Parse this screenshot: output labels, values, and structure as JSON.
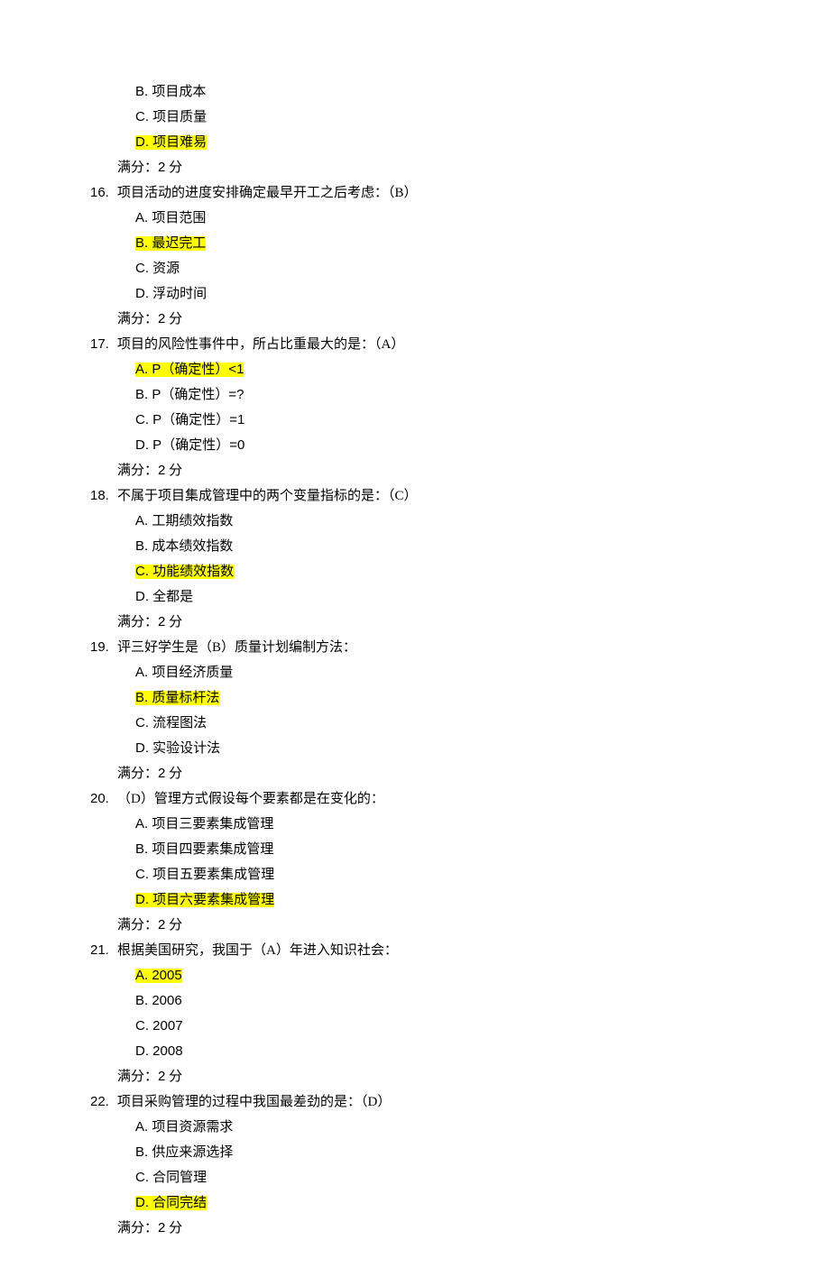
{
  "style": {
    "highlight_color": "#ffff00",
    "font_size_pt": 15,
    "line_height": 1.8,
    "background": "#ffffff",
    "text_color": "#000000"
  },
  "score_label_prefix": "满分：",
  "score_value": "2",
  "score_unit": " 分",
  "prelude": {
    "options": [
      {
        "label": "B. ",
        "text": "项目成本",
        "highlighted": false
      },
      {
        "label": "C. ",
        "text": "项目质量",
        "highlighted": false
      },
      {
        "label": "D. ",
        "text": "项目难易",
        "highlighted": true
      }
    ]
  },
  "questions": [
    {
      "num": "16. ",
      "stem": "项目活动的进度安排确定最早开工之后考虑：（B）",
      "options": [
        {
          "label": "A. ",
          "text": "项目范围",
          "highlighted": false
        },
        {
          "label": "B. ",
          "text": "最迟完工",
          "highlighted": true
        },
        {
          "label": "C. ",
          "text": "资源",
          "highlighted": false
        },
        {
          "label": "D. ",
          "text": "浮动时间",
          "highlighted": false
        }
      ]
    },
    {
      "num": "17. ",
      "stem": "项目的风险性事件中，所占比重最大的是：（A）",
      "options": [
        {
          "label": "A. ",
          "text": "P（确定性）<1",
          "highlighted": true,
          "mono": true
        },
        {
          "label": "B. ",
          "text": "P（确定性）=?",
          "highlighted": false,
          "mono": true
        },
        {
          "label": "C. ",
          "text": "P（确定性）=1",
          "highlighted": false,
          "mono": true
        },
        {
          "label": "D. ",
          "text": "P（确定性）=0",
          "highlighted": false,
          "mono": true
        }
      ]
    },
    {
      "num": "18. ",
      "stem": "不属于项目集成管理中的两个变量指标的是：（C）",
      "options": [
        {
          "label": "A. ",
          "text": "工期绩效指数",
          "highlighted": false
        },
        {
          "label": "B. ",
          "text": "成本绩效指数",
          "highlighted": false
        },
        {
          "label": "C. ",
          "text": "功能绩效指数",
          "highlighted": true
        },
        {
          "label": "D. ",
          "text": "全都是",
          "highlighted": false
        }
      ]
    },
    {
      "num": "19. ",
      "stem": "评三好学生是（B）质量计划编制方法：",
      "options": [
        {
          "label": "A. ",
          "text": "项目经济质量",
          "highlighted": false
        },
        {
          "label": "B. ",
          "text": "质量标杆法",
          "highlighted": true
        },
        {
          "label": "C. ",
          "text": "流程图法",
          "highlighted": false
        },
        {
          "label": "D. ",
          "text": "实验设计法",
          "highlighted": false
        }
      ]
    },
    {
      "num": "20. ",
      "stem": "（D）管理方式假设每个要素都是在变化的：",
      "options": [
        {
          "label": "A. ",
          "text": "项目三要素集成管理",
          "highlighted": false
        },
        {
          "label": "B. ",
          "text": "项目四要素集成管理",
          "highlighted": false
        },
        {
          "label": "C. ",
          "text": "项目五要素集成管理",
          "highlighted": false
        },
        {
          "label": "D. ",
          "text": "项目六要素集成管理",
          "highlighted": true
        }
      ]
    },
    {
      "num": "21. ",
      "stem": "根据美国研究，我国于（A）年进入知识社会：",
      "options": [
        {
          "label": "A. ",
          "text": "2005",
          "highlighted": true,
          "mono": true
        },
        {
          "label": "B. ",
          "text": "2006",
          "highlighted": false,
          "mono": true
        },
        {
          "label": "C. ",
          "text": "2007",
          "highlighted": false,
          "mono": true
        },
        {
          "label": "D. ",
          "text": "2008",
          "highlighted": false,
          "mono": true
        }
      ]
    },
    {
      "num": "22. ",
      "stem": "项目采购管理的过程中我国最差劲的是：（D）",
      "options": [
        {
          "label": "A. ",
          "text": "项目资源需求",
          "highlighted": false
        },
        {
          "label": "B. ",
          "text": "供应来源选择",
          "highlighted": false
        },
        {
          "label": "C. ",
          "text": "合同管理",
          "highlighted": false
        },
        {
          "label": "D. ",
          "text": "合同完结",
          "highlighted": true
        }
      ]
    }
  ]
}
